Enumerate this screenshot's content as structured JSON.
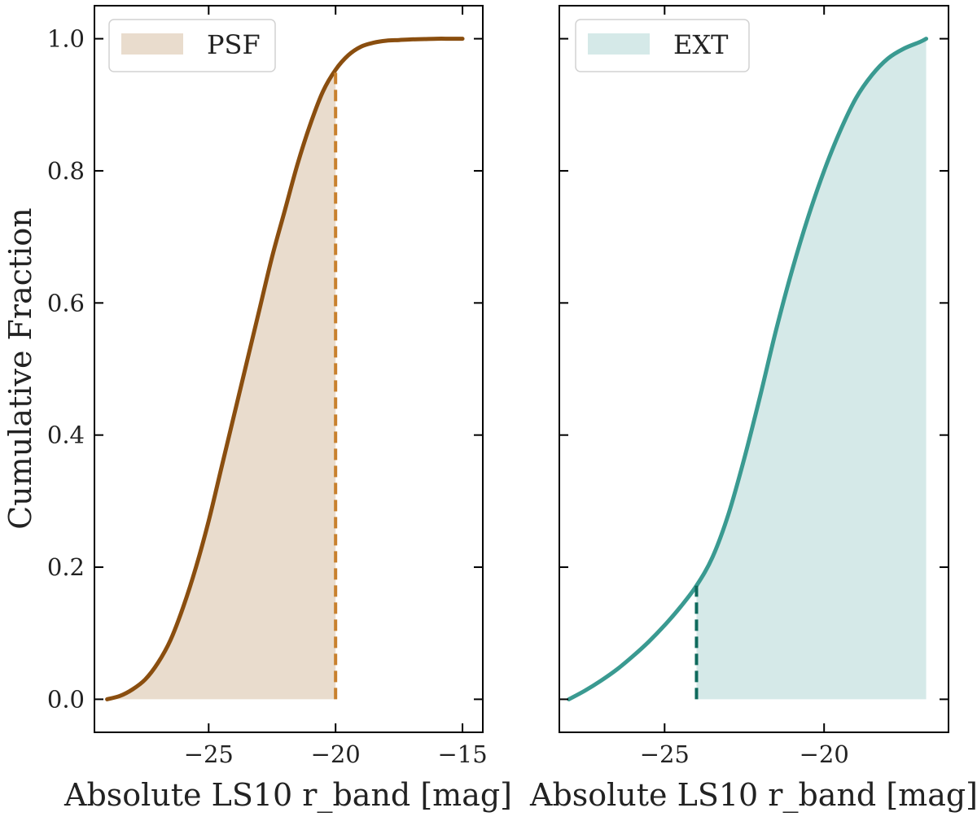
{
  "chart_data": [
    {
      "type": "line",
      "panel": "left",
      "legend": "PSF",
      "legend_location": "upper-left",
      "xlabel": "Absolute LS10 r_band [mag]",
      "ylabel": "Cumulative Fraction",
      "xlim": [
        -29.5,
        -14.2
      ],
      "ylim": [
        -0.05,
        1.05
      ],
      "xticks": [
        -25,
        -20,
        -15
      ],
      "xtick_labels": [
        "−25",
        "−20",
        "−15"
      ],
      "yticks": [
        0.0,
        0.2,
        0.4,
        0.6,
        0.8,
        1.0
      ],
      "ytick_labels": [
        "0.0",
        "0.2",
        "0.4",
        "0.6",
        "0.8",
        "1.0"
      ],
      "line_color": "#8a4e0f",
      "fill_color": "#e9dccd",
      "cutoff_color": "#c8812e",
      "cutoff_x": -20.0,
      "fill_x_range": [
        -29.0,
        -20.0
      ],
      "x": [
        -29.0,
        -28.5,
        -28.0,
        -27.5,
        -27.0,
        -26.5,
        -26.0,
        -25.5,
        -25.0,
        -24.5,
        -24.0,
        -23.5,
        -23.0,
        -22.5,
        -22.0,
        -21.5,
        -21.0,
        -20.5,
        -20.0,
        -19.5,
        -19.0,
        -18.5,
        -18.0,
        -17.5,
        -17.0,
        -16.5,
        -16.0,
        -15.5,
        -15.0
      ],
      "y": [
        0.0,
        0.005,
        0.015,
        0.03,
        0.055,
        0.09,
        0.14,
        0.2,
        0.27,
        0.35,
        0.43,
        0.51,
        0.59,
        0.67,
        0.74,
        0.81,
        0.87,
        0.92,
        0.953,
        0.975,
        0.988,
        0.994,
        0.997,
        0.998,
        0.999,
        0.9995,
        1.0,
        1.0,
        1.0
      ]
    },
    {
      "type": "line",
      "panel": "right",
      "legend": "EXT",
      "legend_location": "upper-left",
      "xlabel": "Absolute LS10 r_band [mag]",
      "ylabel": "",
      "xlim": [
        -28.3,
        -16.1
      ],
      "ylim": [
        -0.05,
        1.05
      ],
      "xticks": [
        -25,
        -20
      ],
      "xtick_labels": [
        "−25",
        "−20"
      ],
      "yticks": [
        0.0,
        0.2,
        0.4,
        0.6,
        0.8,
        1.0
      ],
      "line_color": "#3a9a91",
      "fill_color": "#d5e9e8",
      "cutoff_color": "#0f6a5c",
      "cutoff_x": -24.0,
      "fill_x_range": [
        -24.0,
        -16.8
      ],
      "x": [
        -28.0,
        -27.5,
        -27.0,
        -26.5,
        -26.0,
        -25.5,
        -25.0,
        -24.5,
        -24.0,
        -23.5,
        -23.0,
        -22.5,
        -22.0,
        -21.5,
        -21.0,
        -20.5,
        -20.0,
        -19.5,
        -19.0,
        -18.5,
        -18.0,
        -17.5,
        -17.0,
        -16.8
      ],
      "y": [
        0.0,
        0.013,
        0.028,
        0.045,
        0.065,
        0.087,
        0.112,
        0.14,
        0.172,
        0.215,
        0.28,
        0.365,
        0.46,
        0.56,
        0.65,
        0.73,
        0.8,
        0.86,
        0.91,
        0.945,
        0.97,
        0.985,
        0.995,
        1.0
      ]
    }
  ]
}
